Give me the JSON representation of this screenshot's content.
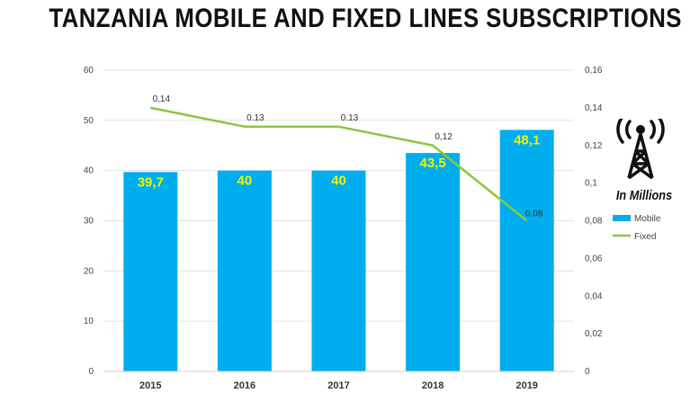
{
  "title": "TANZANIA MOBILE AND FIXED LINES SUBSCRIPTIONS",
  "side_caption": "In Millions",
  "icon": "antenna-tower-icon",
  "colors": {
    "mobile": "#00aeef",
    "fixed": "#8cc63f",
    "bar_label": "#f2f200"
  },
  "chart_data": {
    "type": "bar",
    "categories": [
      "2015",
      "2016",
      "2017",
      "2018",
      "2019"
    ],
    "series": [
      {
        "name": "Mobile",
        "type": "bar",
        "axis": "left",
        "values": [
          39.7,
          40,
          40,
          43.5,
          48.1
        ],
        "labels": [
          "39,7",
          "40",
          "40",
          "43,5",
          "48,1"
        ]
      },
      {
        "name": "Fixed",
        "type": "line",
        "axis": "right",
        "values": [
          0.14,
          0.13,
          0.13,
          0.12,
          0.08
        ],
        "labels": [
          "0,14",
          "0.13",
          "0.13",
          "0,12",
          "0,08"
        ]
      }
    ],
    "y_left": {
      "range": [
        0,
        60
      ],
      "ticks": [
        "0",
        "10",
        "20",
        "30",
        "40",
        "50",
        "60"
      ]
    },
    "y_right": {
      "range": [
        0,
        0.16
      ],
      "ticks": [
        "0",
        "0,02",
        "0,04",
        "0,06",
        "0,08",
        "0,1",
        "0,12",
        "0,14",
        "0,16"
      ]
    },
    "grid": true,
    "legend": "right"
  }
}
